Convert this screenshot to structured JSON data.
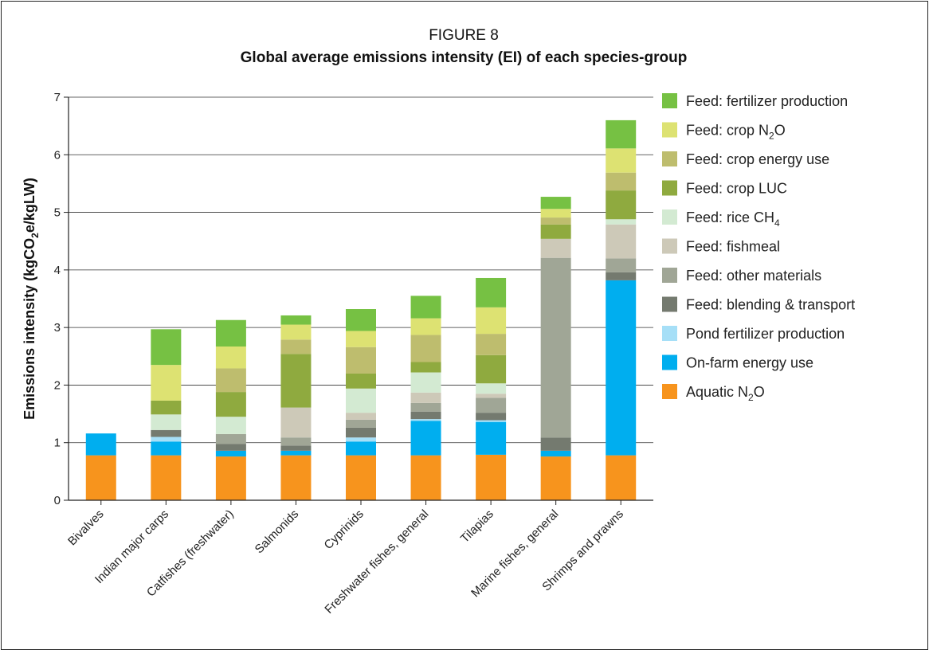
{
  "figure_label": "FIGURE 8",
  "title": "Global average emissions intensity (EI) of each species-group",
  "chart_data": {
    "type": "bar",
    "stacked": true,
    "title": "Global average emissions intensity (EI) of each species-group",
    "ylabel": "Emissions intensity (kgCO₂e/kgLW)",
    "ylabel_parts": [
      "Emissions intensity (kgCO",
      "2",
      "e/kgLW)"
    ],
    "xlabel": "",
    "ylim": [
      0,
      7
    ],
    "yticks": [
      0,
      1,
      2,
      3,
      4,
      5,
      6,
      7
    ],
    "grid": true,
    "legend_position": "right",
    "categories": [
      "Bivalves",
      "Indian major carps",
      "Catfishes (freshwater)",
      "Salmonids",
      "Cyprinids",
      "Freshwater fishes, general",
      "Tilapias",
      "Marine fishes, general",
      "Shrimps and prawns"
    ],
    "series": [
      {
        "name": "Aquatic N₂O",
        "legend_parts": [
          "Aquatic N",
          "2",
          "O"
        ],
        "color": "#f7941d",
        "values": [
          0.78,
          0.78,
          0.76,
          0.78,
          0.78,
          0.78,
          0.79,
          0.76,
          0.78
        ]
      },
      {
        "name": "On-farm energy use",
        "legend_parts": [
          "On-farm energy use",
          "",
          ""
        ],
        "color": "#00aeef",
        "values": [
          0.38,
          0.24,
          0.1,
          0.08,
          0.24,
          0.6,
          0.57,
          0.1,
          3.04
        ]
      },
      {
        "name": "Pond fertilizer production",
        "legend_parts": [
          "Pond fertilizer production",
          "",
          ""
        ],
        "color": "#a6dff7",
        "values": [
          0,
          0.08,
          0,
          0,
          0.07,
          0.03,
          0.03,
          0,
          0
        ]
      },
      {
        "name": "Feed: blending & transport",
        "legend_parts": [
          "Feed: blending & transport",
          "",
          ""
        ],
        "color": "#747a6f",
        "values": [
          0,
          0.12,
          0.12,
          0.09,
          0.17,
          0.13,
          0.13,
          0.23,
          0.14
        ]
      },
      {
        "name": "Feed: other materials",
        "legend_parts": [
          "Feed: other materials",
          "",
          ""
        ],
        "color": "#a0a696",
        "values": [
          0,
          0,
          0.17,
          0.14,
          0.14,
          0.15,
          0.26,
          3.12,
          0.24
        ]
      },
      {
        "name": "Feed: fishmeal",
        "legend_parts": [
          "Feed: fishmeal",
          "",
          ""
        ],
        "color": "#cdc9b8",
        "values": [
          0,
          0,
          0,
          0.52,
          0.12,
          0.18,
          0.07,
          0.33,
          0.59
        ]
      },
      {
        "name": "Feed: rice CH₄",
        "legend_parts": [
          "Feed: rice CH",
          "4",
          ""
        ],
        "color": "#d3ead2",
        "values": [
          0,
          0.27,
          0.3,
          0,
          0.42,
          0.35,
          0.18,
          0,
          0.09
        ]
      },
      {
        "name": "Feed: crop LUC",
        "legend_parts": [
          "Feed: crop LUC",
          "",
          ""
        ],
        "color": "#8faa3f",
        "values": [
          0,
          0.24,
          0.43,
          0.93,
          0.26,
          0.18,
          0.49,
          0.25,
          0.5
        ]
      },
      {
        "name": "Feed: crop energy use",
        "legend_parts": [
          "Feed: crop energy use",
          "",
          ""
        ],
        "color": "#bebd6e",
        "values": [
          0,
          0,
          0.41,
          0.25,
          0.46,
          0.47,
          0.37,
          0.12,
          0.31
        ]
      },
      {
        "name": "Feed: crop N₂O",
        "legend_parts": [
          "Feed: crop N",
          "2",
          "O"
        ],
        "color": "#dde272",
        "values": [
          0,
          0.62,
          0.38,
          0.26,
          0.28,
          0.29,
          0.46,
          0.15,
          0.42
        ]
      },
      {
        "name": "Feed: fertilizer production",
        "legend_parts": [
          "Feed: fertilizer production",
          "",
          ""
        ],
        "color": "#76c143",
        "values": [
          0,
          0.62,
          0.46,
          0.16,
          0.38,
          0.39,
          0.51,
          0.21,
          0.49
        ]
      }
    ]
  }
}
